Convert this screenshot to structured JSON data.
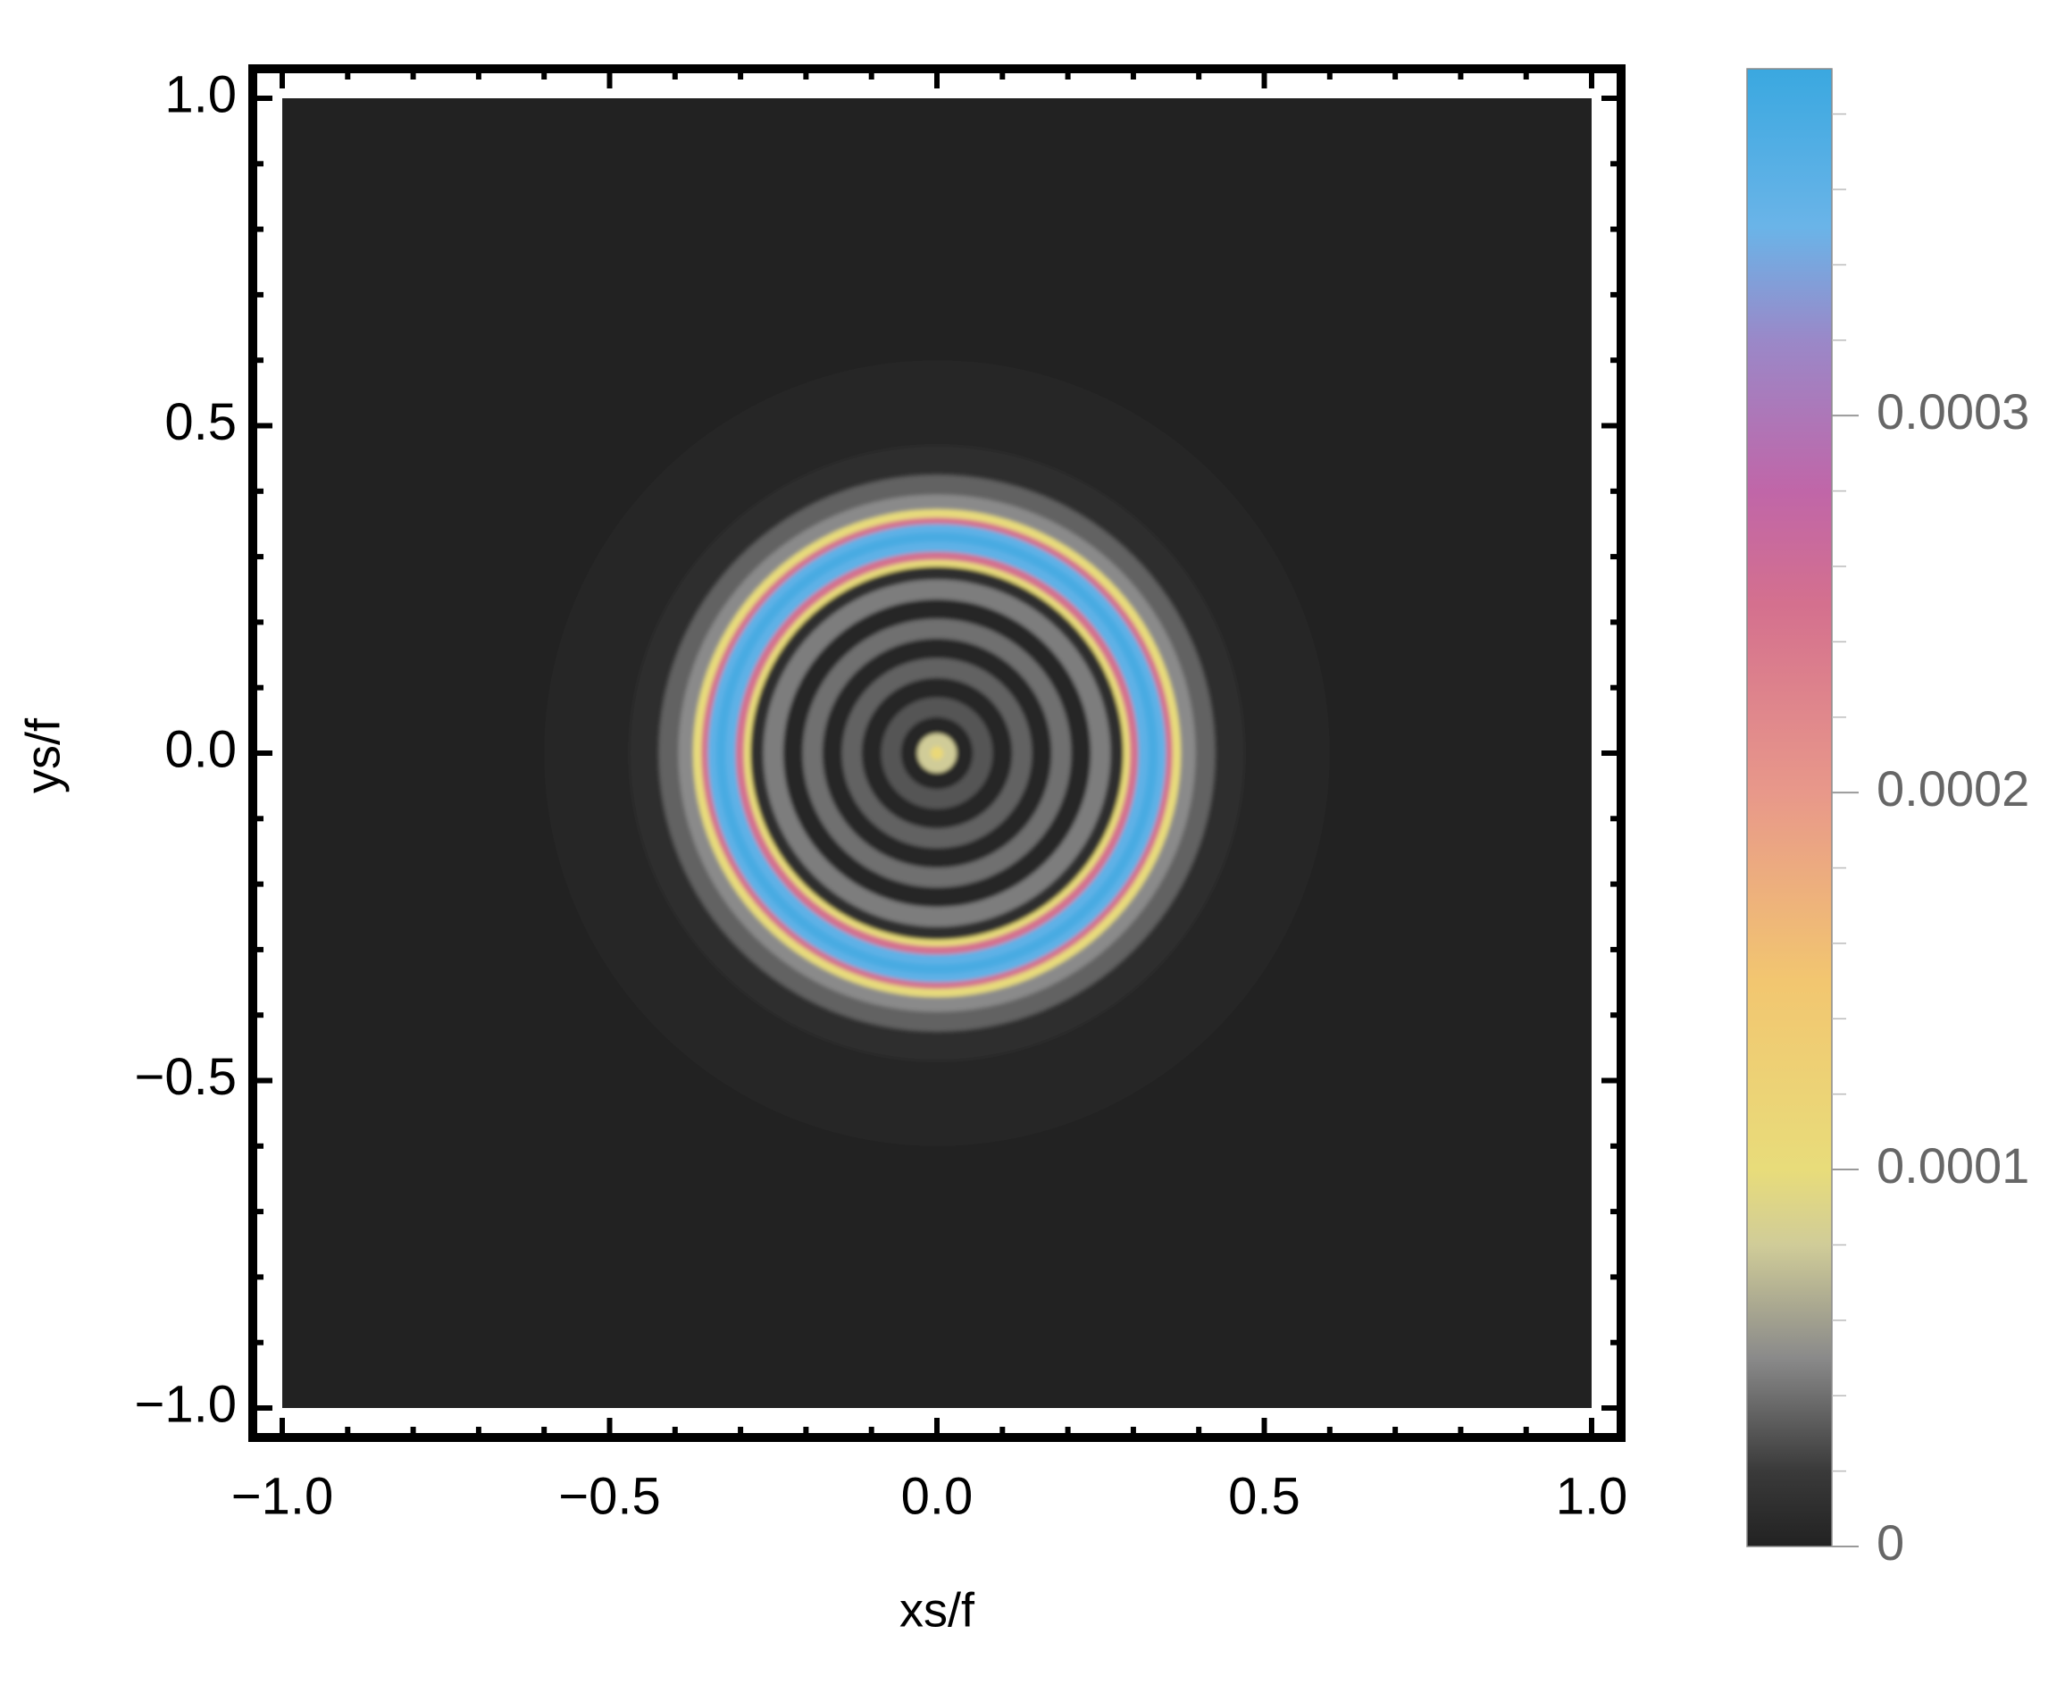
{
  "chart_data": {
    "type": "density",
    "x_label": "xs/f",
    "y_label": "ys/f",
    "xlim": [
      -1.045,
      1.045
    ],
    "ylim": [
      -1.045,
      1.045
    ],
    "data_range": [
      -1,
      1
    ],
    "xticks": [
      {
        "value": -1,
        "label": "−1.0"
      },
      {
        "value": -0.5,
        "label": "−0.5"
      },
      {
        "value": 0,
        "label": "0.0"
      },
      0.5,
      {
        "value": 1,
        "label": "1.0"
      }
    ],
    "yticks": [
      {
        "value": -1,
        "label": "−1.0"
      },
      {
        "value": -0.5,
        "label": "−0.5"
      },
      {
        "value": 0,
        "label": "0.0"
      },
      0.5,
      {
        "value": 1,
        "label": "1.0"
      }
    ],
    "minor_ticks": [
      -0.9,
      -0.8,
      -0.7,
      -0.6,
      -0.4,
      -0.3,
      -0.2,
      -0.1,
      0.1,
      0.2,
      0.3,
      0.4,
      0.6,
      0.7,
      0.8,
      0.9
    ],
    "radial_profile": {
      "r": [
        0,
        0.02,
        0.04,
        0.07,
        0.1,
        0.13,
        0.16,
        0.19,
        0.22,
        0.25,
        0.28,
        0.29,
        0.3,
        0.315,
        0.33,
        0.345,
        0.355,
        0.365,
        0.38,
        0.41,
        0.44,
        0.5,
        0.7,
        1.45
      ],
      "values": [
        0.00011,
        8e-05,
        5e-06,
        3e-05,
        5e-06,
        3.5e-05,
        5e-06,
        4e-05,
        5e-06,
        4.5e-05,
        1e-05,
        0.0001,
        0.00025,
        0.00036,
        0.00038,
        0.00036,
        0.00025,
        0.0001,
        5e-05,
        3.5e-05,
        1e-05,
        3e-06,
        1e-06,
        0
      ]
    },
    "colorbar": {
      "lim": [
        0,
        0.000392
      ],
      "ticks": [
        0,
        0.0001,
        0.0002,
        0.0003
      ],
      "minor_ticks": [
        2e-05,
        4e-05,
        6e-05,
        8e-05,
        0.00012,
        0.00014,
        0.00016,
        0.00018,
        0.00022,
        0.00024,
        0.00026,
        0.00028,
        0.00032,
        0.00034,
        0.00036,
        0.00038
      ],
      "colormap": [
        {
          "value": 0,
          "color": "#222222"
        },
        {
          "value": 2e-05,
          "color": "#3a3a3a"
        },
        {
          "value": 5e-05,
          "color": "#8a8a8a"
        },
        {
          "value": 8e-05,
          "color": "#d0cc98"
        },
        {
          "value": 0.0001,
          "color": "#e8dc7a"
        },
        {
          "value": 0.00015,
          "color": "#f2c670"
        },
        {
          "value": 0.0002,
          "color": "#e8988a"
        },
        {
          "value": 0.00025,
          "color": "#d4708e"
        },
        {
          "value": 0.00028,
          "color": "#c066a8"
        },
        {
          "value": 0.00032,
          "color": "#9a88c8"
        },
        {
          "value": 0.00035,
          "color": "#6ab4e8"
        },
        {
          "value": 0.000392,
          "color": "#3aa8e0"
        }
      ]
    }
  }
}
